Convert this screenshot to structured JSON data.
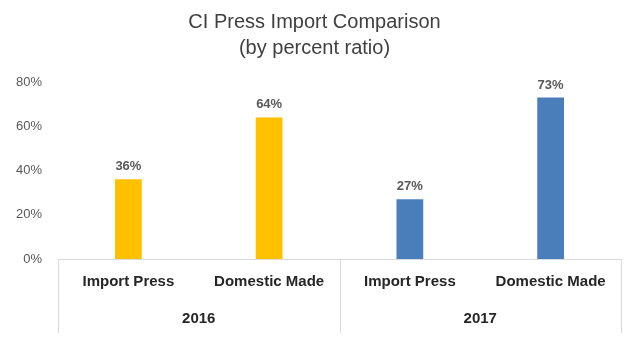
{
  "chart_data": {
    "type": "bar",
    "title": "CI Press Import Comparison",
    "subtitle": "(by percent ratio)",
    "groups": [
      {
        "label": "2016",
        "categories": [
          "Import Press",
          "Domestic Made"
        ],
        "values": [
          36,
          64
        ],
        "value_labels": [
          "36%",
          "64%"
        ],
        "color": "#ffc000"
      },
      {
        "label": "2017",
        "categories": [
          "Import Press",
          "Domestic Made"
        ],
        "values": [
          27,
          73
        ],
        "value_labels": [
          "27%",
          "73%"
        ],
        "color": "#4a7ebb"
      }
    ],
    "ylim": [
      0,
      80
    ],
    "yticks": [
      {
        "value": 0,
        "label": "0%"
      },
      {
        "value": 20,
        "label": "20%"
      },
      {
        "value": 40,
        "label": "40%"
      },
      {
        "value": 60,
        "label": "60%"
      },
      {
        "value": 80,
        "label": "80%"
      }
    ],
    "grid": false,
    "data_labels": true
  }
}
